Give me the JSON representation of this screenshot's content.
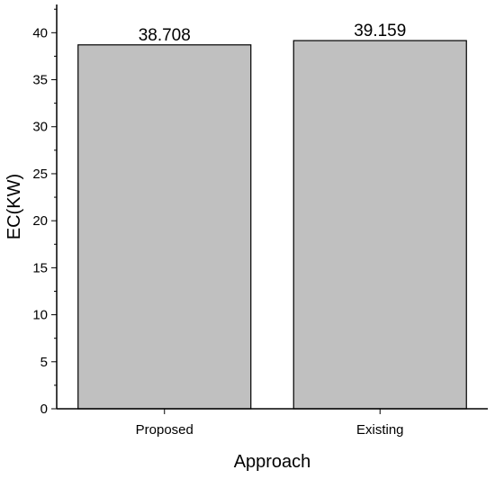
{
  "chart_data": {
    "type": "bar",
    "title": "",
    "categories": [
      "Proposed",
      "Existing"
    ],
    "values": [
      38.708,
      39.159
    ],
    "value_labels": [
      "38.708",
      "39.159"
    ],
    "xlabel": "Approach",
    "ylabel": "EC(KW)",
    "ylim": [
      0,
      43
    ],
    "yticks": [
      0,
      5,
      10,
      15,
      20,
      25,
      30,
      35,
      40
    ],
    "grid": false,
    "legend": "none",
    "bar_color": "#c0c0c0",
    "bar_edge_color": "#000000"
  }
}
